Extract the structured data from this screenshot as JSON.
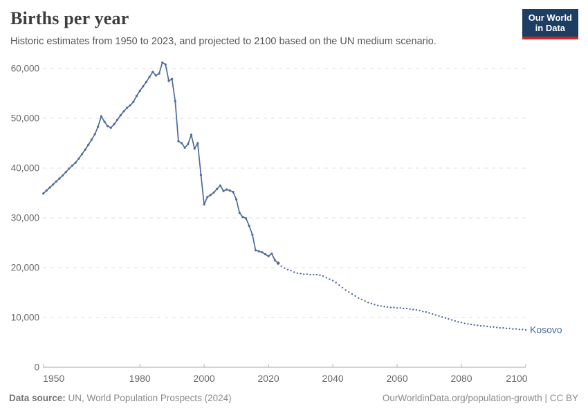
{
  "header": {
    "title": "Births per year",
    "subtitle": "Historic estimates from 1950 to 2023, and projected to 2100 based on the UN medium scenario.",
    "logo": {
      "line1": "Our World",
      "line2": "in Data"
    }
  },
  "footer": {
    "source_label": "Data source:",
    "source_text": "UN, World Population Prospects (2024)",
    "credit": "OurWorldinData.org/population-growth | CC BY"
  },
  "chart_data": {
    "type": "line",
    "title": "Births per year",
    "entity": "Kosovo",
    "series_label": "Kosovo",
    "xlabel": "",
    "ylabel": "",
    "xlim": [
      1950,
      2100
    ],
    "ylim": [
      0,
      62000
    ],
    "grid": "horizontal-dashed",
    "legend_position": "end-of-line",
    "colors": {
      "line": "#4c6a9c",
      "grid": "#dedede",
      "axis": "#a5a5a5",
      "tick": "#b5b5b5",
      "tick_label": "#676767",
      "series_label": "#4c6a9c"
    },
    "x_ticks": [
      {
        "value": 1950,
        "label": "1950"
      },
      {
        "value": 1980,
        "label": "1980"
      },
      {
        "value": 2000,
        "label": "2000"
      },
      {
        "value": 2020,
        "label": "2020"
      },
      {
        "value": 2040,
        "label": "2040"
      },
      {
        "value": 2060,
        "label": "2060"
      },
      {
        "value": 2080,
        "label": "2080"
      },
      {
        "value": 2100,
        "label": "2100"
      }
    ],
    "y_ticks": [
      {
        "value": 0,
        "label": "0"
      },
      {
        "value": 10000,
        "label": "10,000"
      },
      {
        "value": 20000,
        "label": "20,000"
      },
      {
        "value": 30000,
        "label": "30,000"
      },
      {
        "value": 40000,
        "label": "40,000"
      },
      {
        "value": 50000,
        "label": "50,000"
      },
      {
        "value": 60000,
        "label": "60,000"
      }
    ],
    "historic": {
      "style": "solid-with-markers",
      "start_year": 1950,
      "end_year": 2023,
      "values": [
        34900,
        35500,
        36100,
        36700,
        37300,
        37900,
        38500,
        39200,
        39900,
        40500,
        41100,
        41900,
        42800,
        43700,
        44700,
        45700,
        46800,
        48300,
        50400,
        49300,
        48400,
        48100,
        48800,
        49700,
        50600,
        51400,
        52100,
        52600,
        53300,
        54500,
        55500,
        56400,
        57300,
        58300,
        59300,
        58600,
        59000,
        61200,
        60800,
        57500,
        57900,
        53400,
        45400,
        45000,
        44100,
        44800,
        46700,
        43900,
        45000,
        38600,
        32700,
        34200,
        34600,
        35100,
        35800,
        36500,
        35400,
        35700,
        35500,
        35200,
        33700,
        31000,
        30200,
        29900,
        28400,
        26600,
        23500,
        23300,
        23100,
        22700,
        22300,
        22800,
        21500,
        20900
      ]
    },
    "projection": {
      "style": "dotted",
      "start_year": 2024,
      "end_year": 2100,
      "values": [
        20300,
        19900,
        19600,
        19400,
        19100,
        18900,
        18800,
        18700,
        18700,
        18600,
        18600,
        18600,
        18500,
        18300,
        18000,
        17700,
        17400,
        17000,
        16500,
        16000,
        15500,
        15100,
        14700,
        14300,
        13900,
        13600,
        13300,
        13000,
        12800,
        12600,
        12400,
        12300,
        12200,
        12100,
        12000,
        12000,
        11900,
        11900,
        11800,
        11800,
        11700,
        11600,
        11500,
        11400,
        11200,
        11100,
        10900,
        10700,
        10500,
        10300,
        10100,
        9900,
        9700,
        9500,
        9300,
        9100,
        9000,
        8800,
        8700,
        8600,
        8500,
        8400,
        8300,
        8300,
        8200,
        8100,
        8100,
        8000,
        7900,
        7900,
        7800,
        7800,
        7700,
        7700,
        7600,
        7600,
        7500
      ]
    }
  }
}
